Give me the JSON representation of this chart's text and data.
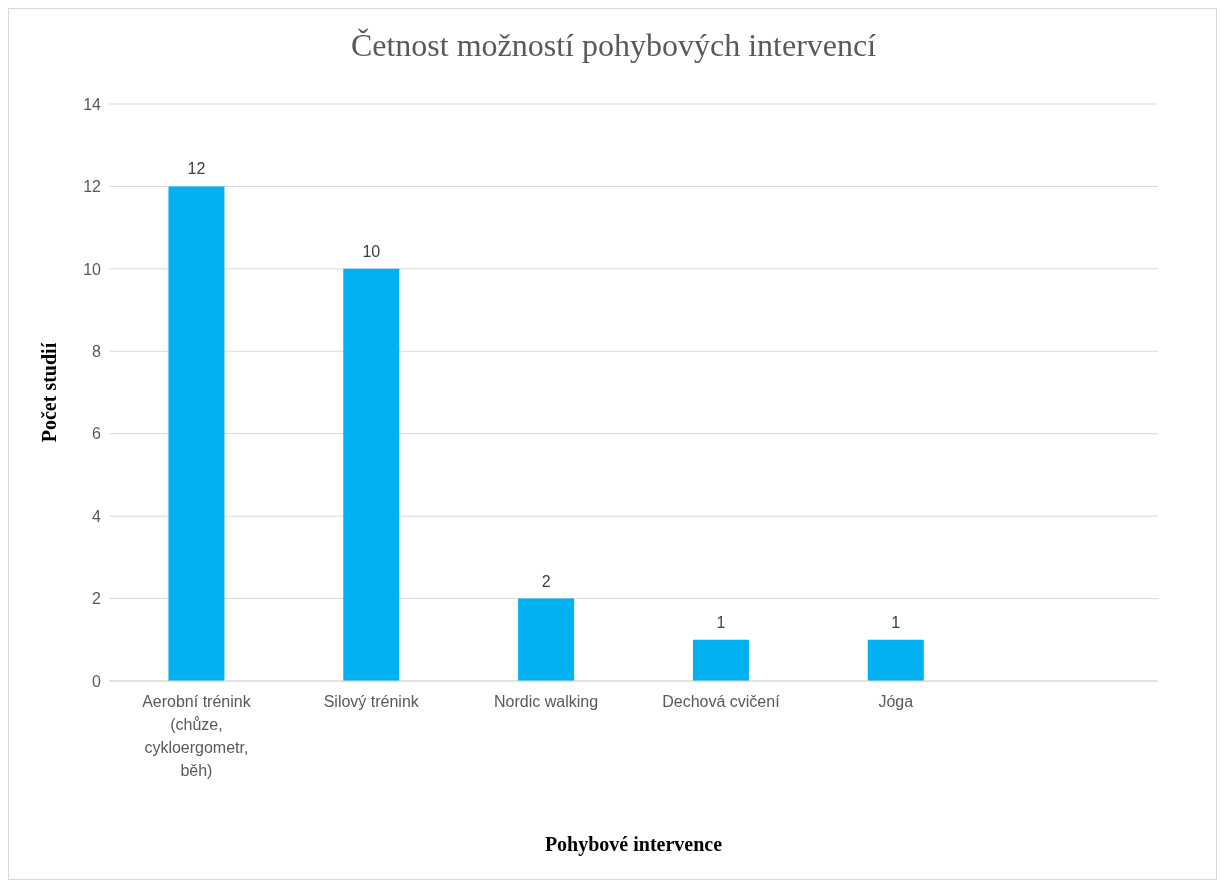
{
  "chart_data": {
    "type": "bar",
    "title": "Četnost možností pohybových intervencí",
    "xlabel": "Pohybové intervence",
    "ylabel": "Počet studií",
    "categories": [
      "Aerobní trénink (chůze, cykloergometr, běh)",
      "Silový trénink",
      "Nordic walking",
      "Dechová cvičení",
      "Jóga",
      null
    ],
    "values": [
      12,
      10,
      2,
      1,
      1,
      null
    ],
    "color": "#00b0f0",
    "ylim": [
      0,
      14
    ],
    "yticks": [
      0,
      2,
      4,
      6,
      8,
      10,
      12,
      14
    ],
    "grid": "y",
    "data_labels": true
  }
}
